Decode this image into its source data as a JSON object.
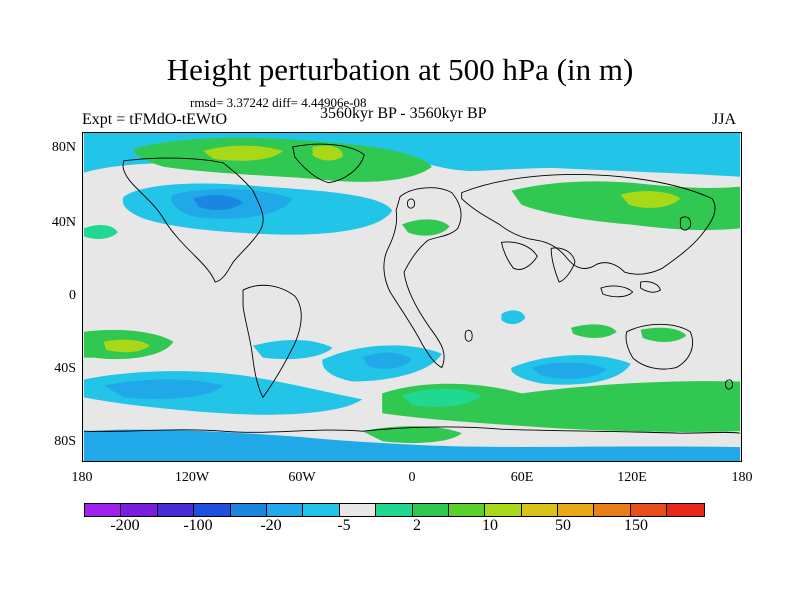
{
  "header": {
    "title": "Height perturbation at 500 hPa (in m)",
    "stats": "rmsd= 3.37242 diff= 4.44906e-08",
    "expt": "Expt = tFMdO-tEWtO",
    "period": "3560kyr BP - 3560kyr BP",
    "season": "JJA"
  },
  "axes": {
    "lat_labels": [
      "80N",
      "40N",
      "0",
      "40S",
      "80S"
    ],
    "lon_labels": [
      "180",
      "120W",
      "60W",
      "0",
      "60E",
      "120E",
      "180"
    ]
  },
  "colorbar": {
    "colors": [
      "#a020f0",
      "#7a1fe0",
      "#4a2bd8",
      "#1e50e0",
      "#1a86e0",
      "#20a8e8",
      "#22c4e8",
      "#e8e8e8",
      "#20d890",
      "#30c850",
      "#5ad02a",
      "#a8d818",
      "#d8c418",
      "#e8a818",
      "#e87e18",
      "#e84e18",
      "#e82818"
    ],
    "labels": [
      "-200",
      "-100",
      "-20",
      "-5",
      "2",
      "10",
      "50",
      "150"
    ]
  },
  "map": {
    "background_color": "#e7e7e7",
    "contour_colors": {
      "blue_strong": "#1a86e0",
      "blue_mid": "#20a8e8",
      "blue_light": "#22c4e8",
      "green_light": "#20d890",
      "green_mid": "#30c850",
      "green_yellow": "#a8d818"
    }
  }
}
